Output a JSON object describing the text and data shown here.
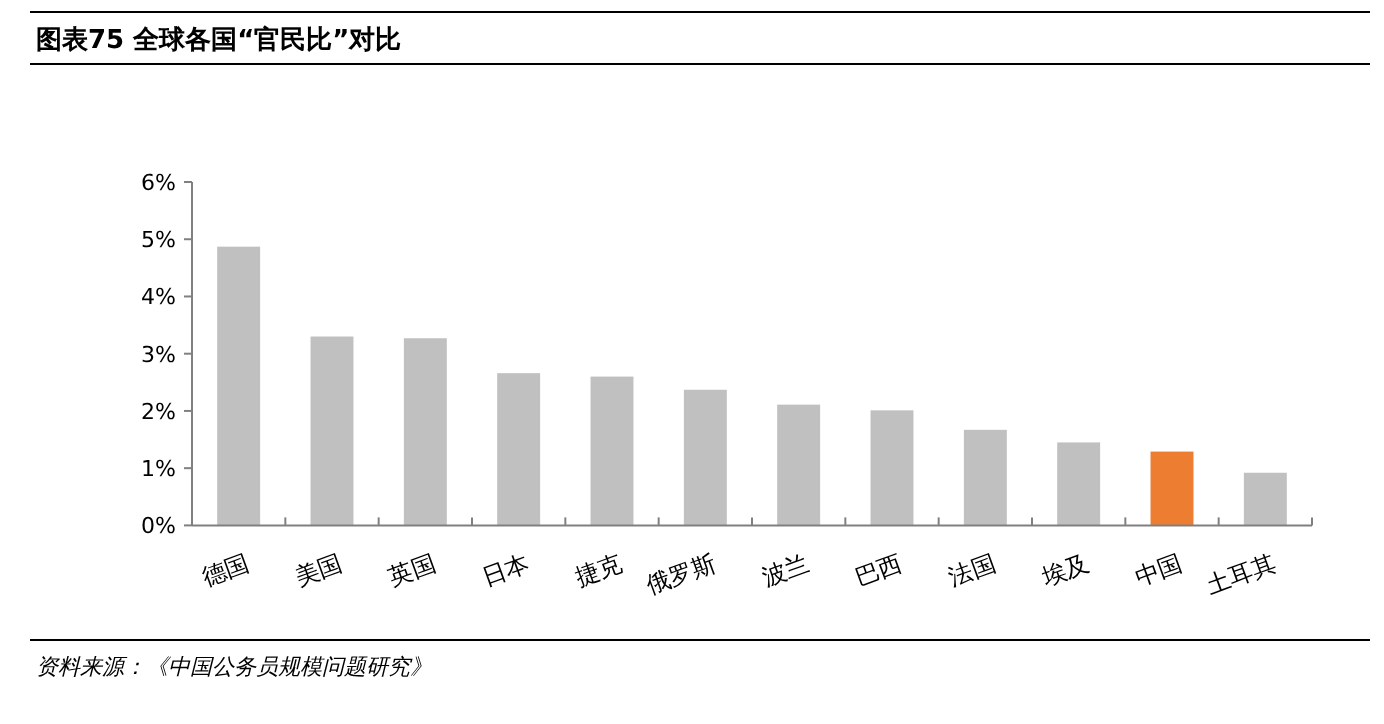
{
  "chart_data": {
    "type": "bar",
    "title": "图表75    全球各国“官民比”对比",
    "categories": [
      "德国",
      "美国",
      "英国",
      "日本",
      "捷克",
      "俄罗斯",
      "波兰",
      "巴西",
      "法国",
      "埃及",
      "中国",
      "土耳其"
    ],
    "values": [
      4.87,
      3.3,
      3.27,
      2.66,
      2.6,
      2.37,
      2.11,
      2.01,
      1.67,
      1.45,
      1.29,
      0.92
    ],
    "colors": [
      "#c0c0c0",
      "#c0c0c0",
      "#c0c0c0",
      "#c0c0c0",
      "#c0c0c0",
      "#c0c0c0",
      "#c0c0c0",
      "#c0c0c0",
      "#c0c0c0",
      "#c0c0c0",
      "#ed7d31",
      "#c0c0c0"
    ],
    "ylim": [
      0,
      6
    ],
    "yticks": [
      {
        "value": 0,
        "label": "0%"
      },
      {
        "value": 1,
        "label": "1%"
      },
      {
        "value": 2,
        "label": "2%"
      },
      {
        "value": 3,
        "label": "3%"
      },
      {
        "value": 4,
        "label": "4%"
      },
      {
        "value": 5,
        "label": "5%"
      },
      {
        "value": 6,
        "label": "6%"
      }
    ],
    "annotations": [
      "资料来源：《中国公务员规模问题研究》"
    ]
  }
}
